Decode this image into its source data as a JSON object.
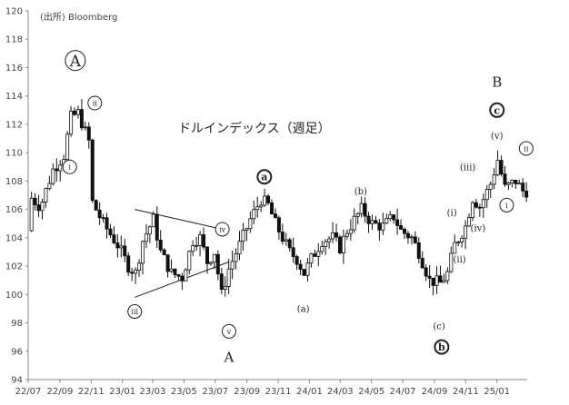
{
  "chart_data": {
    "type": "candlestick",
    "title": "ドルインデックス（週足）",
    "source": "(出所) Bloomberg",
    "ylim": [
      94,
      120
    ],
    "yticks": [
      94,
      96,
      98,
      100,
      102,
      104,
      106,
      108,
      110,
      112,
      114,
      116,
      118,
      120
    ],
    "x_tick_labels": [
      "22/07",
      "22/09",
      "22/11",
      "23/01",
      "23/03",
      "23/05",
      "23/07",
      "23/09",
      "23/11",
      "24/01",
      "24/03",
      "24/05",
      "24/07",
      "24/09",
      "24/11",
      "25/01"
    ],
    "grid": false,
    "points": [
      {
        "date": "2022-07-04",
        "v": 104.5
      },
      {
        "date": "2022-07-11",
        "v": 106.8
      },
      {
        "date": "2022-07-25",
        "v": 106.3
      },
      {
        "date": "2022-08-01",
        "v": 106.6
      },
      {
        "date": "2022-08-22",
        "v": 108.8
      },
      {
        "date": "2022-09-12",
        "v": 109.8
      },
      {
        "date": "2022-09-26",
        "v": 112.5
      },
      {
        "date": "2022-10-10",
        "v": 112.8
      },
      {
        "date": "2022-10-31",
        "v": 110.8
      },
      {
        "date": "2022-11-07",
        "v": 106.5
      },
      {
        "date": "2022-11-28",
        "v": 105.0
      },
      {
        "date": "2022-12-26",
        "v": 103.5
      },
      {
        "date": "2023-01-16",
        "v": 102.0
      },
      {
        "date": "2023-01-30",
        "v": 101.5
      },
      {
        "date": "2023-02-13",
        "v": 103.8
      },
      {
        "date": "2023-03-06",
        "v": 105.3
      },
      {
        "date": "2023-03-20",
        "v": 103.0
      },
      {
        "date": "2023-04-10",
        "v": 101.5
      },
      {
        "date": "2023-05-01",
        "v": 101.2
      },
      {
        "date": "2023-05-22",
        "v": 103.8
      },
      {
        "date": "2023-06-05",
        "v": 104.0
      },
      {
        "date": "2023-06-19",
        "v": 102.3
      },
      {
        "date": "2023-07-03",
        "v": 103.0
      },
      {
        "date": "2023-07-17",
        "v": 100.0
      },
      {
        "date": "2023-07-31",
        "v": 101.8
      },
      {
        "date": "2023-08-21",
        "v": 103.5
      },
      {
        "date": "2023-09-11",
        "v": 105.3
      },
      {
        "date": "2023-10-02",
        "v": 106.7
      },
      {
        "date": "2023-10-16",
        "v": 106.3
      },
      {
        "date": "2023-10-30",
        "v": 105.0
      },
      {
        "date": "2023-11-13",
        "v": 104.0
      },
      {
        "date": "2023-11-27",
        "v": 103.0
      },
      {
        "date": "2023-12-11",
        "v": 102.5
      },
      {
        "date": "2023-12-25",
        "v": 101.5
      },
      {
        "date": "2024-01-08",
        "v": 102.5
      },
      {
        "date": "2024-01-29",
        "v": 103.8
      },
      {
        "date": "2024-02-19",
        "v": 104.0
      },
      {
        "date": "2024-03-04",
        "v": 103.3
      },
      {
        "date": "2024-03-18",
        "v": 104.5
      },
      {
        "date": "2024-04-15",
        "v": 106.0
      },
      {
        "date": "2024-05-06",
        "v": 105.0
      },
      {
        "date": "2024-05-27",
        "v": 104.8
      },
      {
        "date": "2024-06-17",
        "v": 105.5
      },
      {
        "date": "2024-07-01",
        "v": 104.5
      },
      {
        "date": "2024-07-22",
        "v": 104.0
      },
      {
        "date": "2024-08-05",
        "v": 103.0
      },
      {
        "date": "2024-08-26",
        "v": 101.0
      },
      {
        "date": "2024-09-16",
        "v": 100.8
      },
      {
        "date": "2024-09-30",
        "v": 101.5
      },
      {
        "date": "2024-10-14",
        "v": 103.5
      },
      {
        "date": "2024-11-04",
        "v": 104.8
      },
      {
        "date": "2024-11-18",
        "v": 106.8
      },
      {
        "date": "2024-12-02",
        "v": 106.2
      },
      {
        "date": "2024-12-23",
        "v": 107.8
      },
      {
        "date": "2025-01-06",
        "v": 109.5
      },
      {
        "date": "2025-01-20",
        "v": 107.5
      },
      {
        "date": "2025-02-10",
        "v": 108.0
      },
      {
        "date": "2025-02-24",
        "v": 107.3
      }
    ],
    "annotations": [
      {
        "text": "A",
        "date": "2022-10-01",
        "y": 116.5,
        "style": "circle-large"
      },
      {
        "text": "ii",
        "date": "2022-11-08",
        "y": 113.5,
        "style": "circle"
      },
      {
        "text": "i",
        "date": "2022-09-20",
        "y": 109.0,
        "style": "circle"
      },
      {
        "text": "iii",
        "date": "2023-01-25",
        "y": 98.8,
        "style": "circle"
      },
      {
        "text": "iv",
        "date": "2023-07-15",
        "y": 104.6,
        "style": "circle"
      },
      {
        "text": "v",
        "date": "2023-07-28",
        "y": 97.4,
        "style": "circle"
      },
      {
        "text": "A",
        "date": "2023-07-28",
        "y": 95.6,
        "style": "plain-large"
      },
      {
        "text": "a",
        "date": "2023-10-05",
        "y": 108.3,
        "style": "circle-filled"
      },
      {
        "text": "(a)",
        "date": "2023-12-20",
        "y": 99.0,
        "style": "plain"
      },
      {
        "text": "(b)",
        "date": "2024-04-10",
        "y": 107.3,
        "style": "plain"
      },
      {
        "text": "(c)",
        "date": "2024-09-10",
        "y": 97.8,
        "style": "plain"
      },
      {
        "text": "b",
        "date": "2024-09-15",
        "y": 96.3,
        "style": "circle-filled"
      },
      {
        "text": "(i)",
        "date": "2024-10-05",
        "y": 105.8,
        "style": "plain"
      },
      {
        "text": "(ii)",
        "date": "2024-10-20",
        "y": 102.5,
        "style": "plain"
      },
      {
        "text": "(iii)",
        "date": "2024-11-05",
        "y": 109.0,
        "style": "plain"
      },
      {
        "text": "(iv)",
        "date": "2024-11-25",
        "y": 104.7,
        "style": "plain"
      },
      {
        "text": "(v)",
        "date": "2025-01-01",
        "y": 111.2,
        "style": "plain"
      },
      {
        "text": "B",
        "date": "2025-01-01",
        "y": 115.0,
        "style": "plain-large"
      },
      {
        "text": "c",
        "date": "2025-01-01",
        "y": 113.0,
        "style": "circle-filled"
      },
      {
        "text": "i",
        "date": "2025-01-20",
        "y": 106.3,
        "style": "circle"
      },
      {
        "text": "ii",
        "date": "2025-02-27",
        "y": 110.3,
        "style": "circle"
      }
    ],
    "triangle": [
      {
        "date": "2023-01-25",
        "y": 106.0
      },
      {
        "date": "2023-07-15",
        "y": 104.6
      },
      {
        "date": "2023-07-28",
        "y": 102.3
      },
      {
        "date": "2023-01-25",
        "y": 99.8
      }
    ]
  }
}
